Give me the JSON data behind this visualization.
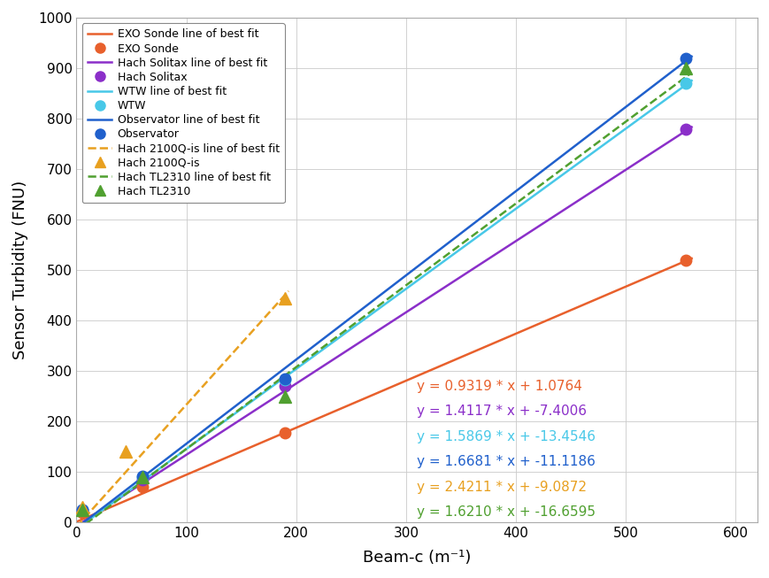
{
  "series": [
    {
      "name": "EXO Sonde",
      "label_line": "EXO Sonde line of best fit",
      "label_data": "EXO Sonde",
      "color": "#E8602C",
      "linestyle": "-",
      "marker": "o",
      "marker_type": "dot",
      "x_data": [
        5.5,
        60.0,
        190.0,
        555.0
      ],
      "y_data": [
        20.0,
        70.0,
        178.0,
        519.0
      ],
      "slope": 0.9319,
      "intercept": 1.0764,
      "x_line_max": 560
    },
    {
      "name": "Hach Solitax",
      "label_line": "Hach Solitax line of best fit",
      "label_data": "Hach Solitax",
      "color": "#8B2FC9",
      "linestyle": "-",
      "marker": "o",
      "marker_type": "dot",
      "x_data": [
        5.5,
        60.0,
        190.0,
        555.0
      ],
      "y_data": [
        25.0,
        85.0,
        270.0,
        778.0
      ],
      "slope": 1.4117,
      "intercept": -7.4006,
      "x_line_max": 560
    },
    {
      "name": "WTW",
      "label_line": "WTW line of best fit",
      "label_data": "WTW",
      "color": "#48C8E8",
      "linestyle": "-",
      "marker": "o",
      "marker_type": "dot",
      "x_data": [
        5.5,
        60.0,
        190.0,
        555.0
      ],
      "y_data": [
        25.0,
        90.0,
        283.0,
        870.0
      ],
      "slope": 1.5869,
      "intercept": -13.4546,
      "x_line_max": 560
    },
    {
      "name": "Observator",
      "label_line": "Observator line of best fit",
      "label_data": "Observator",
      "color": "#2060CC",
      "linestyle": "-",
      "marker": "o",
      "marker_type": "dot",
      "x_data": [
        5.5,
        60.0,
        190.0,
        555.0
      ],
      "y_data": [
        25.0,
        92.0,
        285.0,
        920.0
      ],
      "slope": 1.6681,
      "intercept": -11.1186,
      "x_line_max": 560
    },
    {
      "name": "Hach 2100Q-is",
      "label_line": "Hach 2100Q-is line of best fit",
      "label_data": "Hach 2100Q-is",
      "color": "#E8A020",
      "linestyle": "--",
      "marker": "^",
      "marker_type": "triangle",
      "x_data": [
        5.5,
        45.0,
        190.0
      ],
      "y_data": [
        30.0,
        140.0,
        444.0
      ],
      "slope": 2.4211,
      "intercept": -9.0872,
      "x_line_max": 193
    },
    {
      "name": "Hach TL2310",
      "label_line": "Hach TL2310 line of best fit",
      "label_data": "Hach TL2310",
      "color": "#50A030",
      "linestyle": "--",
      "marker": "^",
      "marker_type": "triangle",
      "x_data": [
        5.5,
        60.0,
        190.0,
        555.0
      ],
      "y_data": [
        25.0,
        90.0,
        250.0,
        900.0
      ],
      "slope": 1.621,
      "intercept": -16.6595,
      "x_line_max": 560
    }
  ],
  "xlabel": "Beam-c (m⁻¹)",
  "ylabel": "Sensor Turbidity (FNU)",
  "xlim": [
    0,
    620
  ],
  "ylim": [
    0,
    1000
  ],
  "xticks": [
    0,
    100,
    200,
    300,
    400,
    500,
    600
  ],
  "yticks": [
    0,
    100,
    200,
    300,
    400,
    500,
    600,
    700,
    800,
    900,
    1000
  ],
  "equations": [
    {
      "text": "y = 0.9319 * x + 1.0764",
      "color": "#E8602C"
    },
    {
      "text": "y = 1.4117 * x + -7.4006",
      "color": "#8B2FC9"
    },
    {
      "text": "y = 1.5869 * x + -13.4546",
      "color": "#48C8E8"
    },
    {
      "text": "y = 1.6681 * x + -11.1186",
      "color": "#2060CC"
    },
    {
      "text": "y = 2.4211 * x + -9.0872",
      "color": "#E8A020"
    },
    {
      "text": "y = 1.6210 * x + -16.6595",
      "color": "#50A030"
    }
  ],
  "background_color": "#ffffff"
}
